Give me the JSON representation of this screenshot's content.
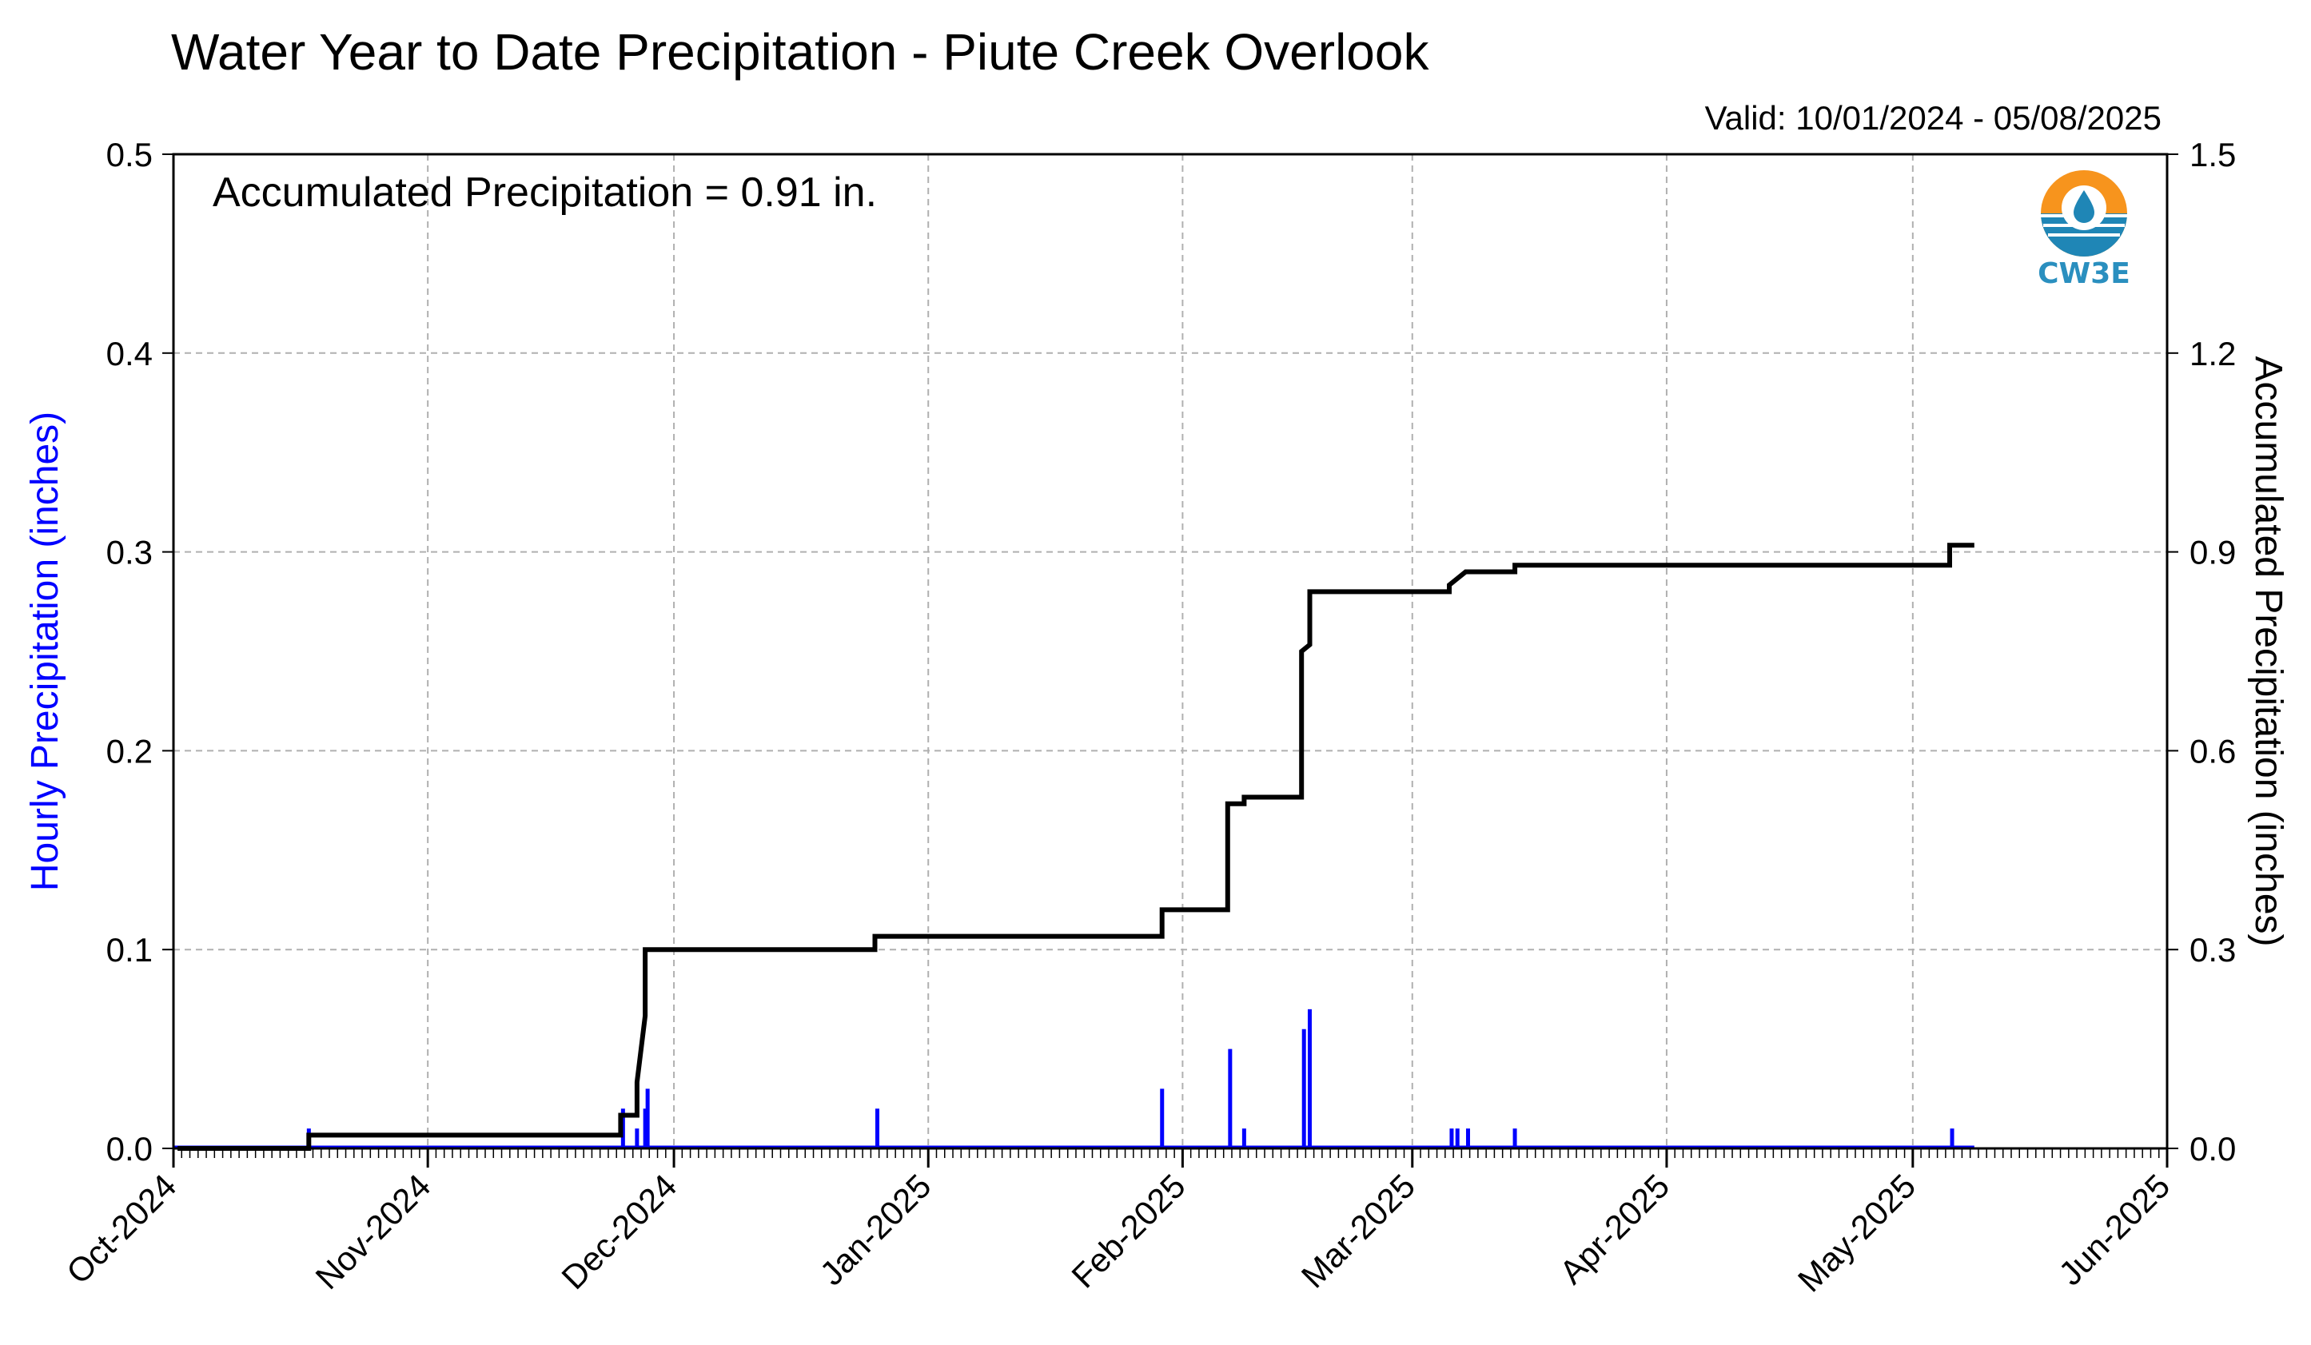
{
  "chart_data": {
    "type": "line",
    "title": "Water Year to Date Precipitation - Piute Creek Overlook",
    "subtitle": "Valid: 10/01/2024 - 05/08/2025",
    "annotation": "Accumulated Precipitation = 0.91 in.",
    "logo_text": "CW3E",
    "y_left": {
      "label": "Hourly Precipitation (inches)",
      "label_color": "#0000ff",
      "range": [
        0,
        0.5
      ],
      "ticks": [
        "0.0",
        "0.1",
        "0.2",
        "0.3",
        "0.4",
        "0.5"
      ]
    },
    "y_right": {
      "label": "Accumulated Precipitation (inches)",
      "range": [
        0,
        1.5
      ],
      "ticks": [
        "0.0",
        "0.3",
        "0.6",
        "0.9",
        "1.2",
        "1.5"
      ]
    },
    "x_axis": {
      "type": "date",
      "range": [
        "2024-10-01",
        "2025-06-01"
      ],
      "tick_labels": [
        "Oct-2024",
        "Nov-2024",
        "Dec-2024",
        "Jan-2025",
        "Feb-2025",
        "Mar-2025",
        "Apr-2025",
        "May-2025",
        "Jun-2025"
      ],
      "tick_dates": [
        "2024-10-01",
        "2024-11-01",
        "2024-12-01",
        "2025-01-01",
        "2025-02-01",
        "2025-03-01",
        "2025-04-01",
        "2025-05-01",
        "2025-06-01"
      ]
    },
    "grid": true,
    "series": [
      {
        "name": "Hourly Precipitation",
        "type": "bar",
        "color": "#0000ff",
        "axis": "left",
        "points": [
          [
            "2024-10-17",
            0.01
          ],
          [
            "2024-11-24",
            0.02
          ],
          [
            "2024-11-26",
            0.01
          ],
          [
            "2024-11-27",
            0.03
          ],
          [
            "2024-11-27",
            0.02
          ],
          [
            "2024-12-25",
            0.02
          ],
          [
            "2025-01-29",
            0.03
          ],
          [
            "2025-02-06",
            0.05
          ],
          [
            "2025-02-08",
            0.01
          ],
          [
            "2025-02-15",
            0.06
          ],
          [
            "2025-02-16",
            0.07
          ],
          [
            "2025-03-05",
            0.01
          ],
          [
            "2025-03-06",
            0.01
          ],
          [
            "2025-03-07",
            0.01
          ],
          [
            "2025-03-13",
            0.01
          ],
          [
            "2025-05-05",
            0.01
          ]
        ]
      },
      {
        "name": "Accumulated Precipitation",
        "type": "step",
        "color": "#000000",
        "axis": "right",
        "points": [
          [
            "2024-10-01",
            0.0
          ],
          [
            "2024-10-17",
            0.0
          ],
          [
            "2024-10-17",
            0.02
          ],
          [
            "2024-11-24",
            0.02
          ],
          [
            "2024-11-24",
            0.05
          ],
          [
            "2024-11-26",
            0.05
          ],
          [
            "2024-11-26",
            0.1
          ],
          [
            "2024-11-27",
            0.2
          ],
          [
            "2024-11-27",
            0.3
          ],
          [
            "2024-12-25",
            0.3
          ],
          [
            "2024-12-25",
            0.32
          ],
          [
            "2025-01-29",
            0.32
          ],
          [
            "2025-01-29",
            0.36
          ],
          [
            "2025-02-06",
            0.36
          ],
          [
            "2025-02-06",
            0.52
          ],
          [
            "2025-02-08",
            0.52
          ],
          [
            "2025-02-08",
            0.53
          ],
          [
            "2025-02-15",
            0.53
          ],
          [
            "2025-02-15",
            0.75
          ],
          [
            "2025-02-16",
            0.76
          ],
          [
            "2025-02-16",
            0.84
          ],
          [
            "2025-03-05",
            0.84
          ],
          [
            "2025-03-05",
            0.85
          ],
          [
            "2025-03-06",
            0.86
          ],
          [
            "2025-03-07",
            0.87
          ],
          [
            "2025-03-13",
            0.87
          ],
          [
            "2025-03-13",
            0.88
          ],
          [
            "2025-05-05",
            0.88
          ],
          [
            "2025-05-05",
            0.91
          ],
          [
            "2025-05-08",
            0.91
          ]
        ]
      }
    ]
  }
}
